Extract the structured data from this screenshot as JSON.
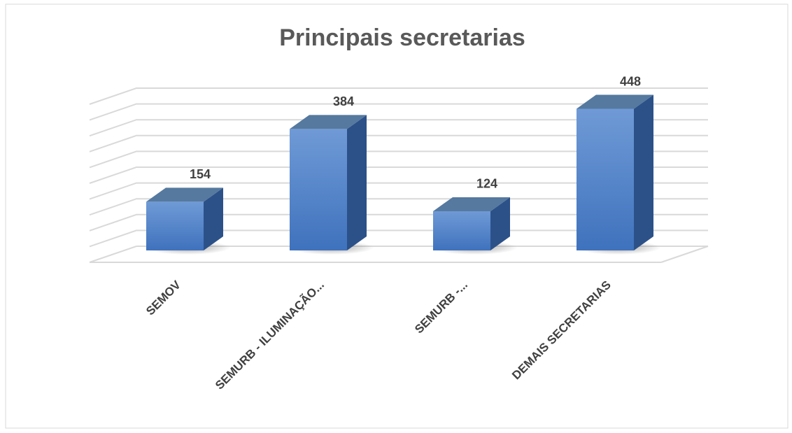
{
  "chart_data": {
    "type": "bar3d",
    "title": "Principais secretarias",
    "categories": [
      "SEMOV",
      "SEMURB - ILUMINAÇÃO...",
      "SEMURB -...",
      "DEMAIS SECRETARIAS"
    ],
    "values": [
      154,
      384,
      124,
      448
    ],
    "color": "#4a7cc4",
    "ylim": [
      0,
      500
    ],
    "yticks": [
      0,
      50,
      100,
      150,
      200,
      250,
      300,
      350,
      400,
      450,
      500
    ],
    "grid": true
  }
}
